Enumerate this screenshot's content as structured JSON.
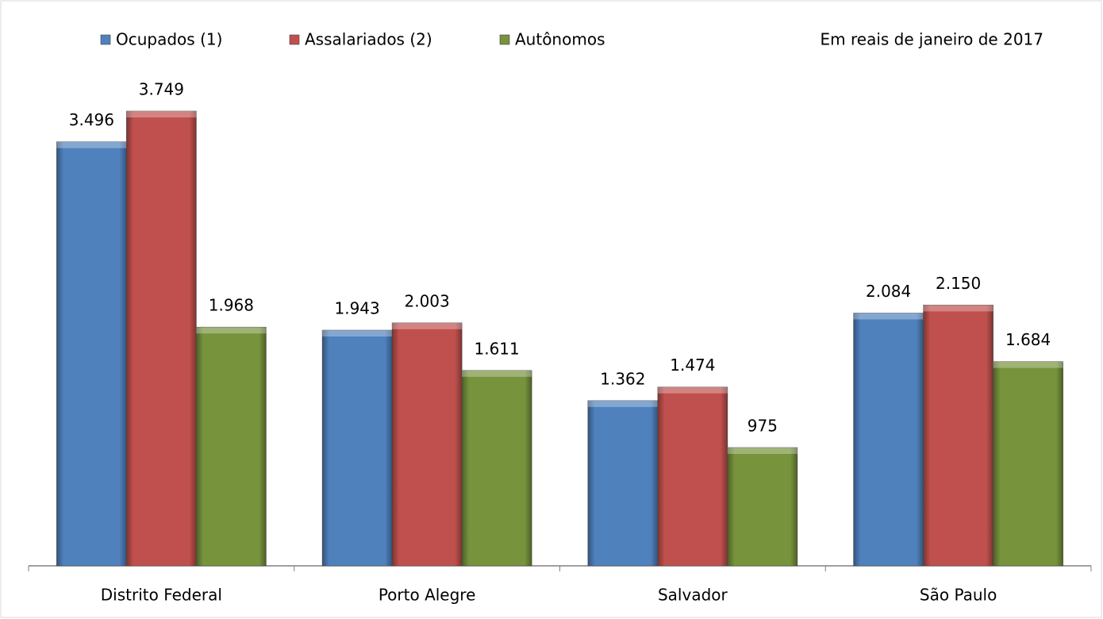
{
  "chart_data": {
    "type": "bar",
    "subtitle": "Em reais de janeiro de 2017",
    "categories": [
      "Distrito Federal",
      "Porto Alegre",
      "Salvador",
      "São Paulo"
    ],
    "series": [
      {
        "name": "Ocupados (1)",
        "color": "#4f81bd",
        "values": [
          3496,
          1943,
          1362,
          2084
        ],
        "value_labels": [
          "3.496",
          "1.943",
          "1.362",
          "2.084"
        ]
      },
      {
        "name": "Assalariados (2)",
        "color": "#c0504d",
        "values": [
          3749,
          2003,
          1474,
          2150
        ],
        "value_labels": [
          "3.749",
          "2.003",
          "1.474",
          "2.150"
        ]
      },
      {
        "name": "Autônomos",
        "color": "#77933c",
        "values": [
          1968,
          1611,
          975,
          1684
        ],
        "value_labels": [
          "1.968",
          "1.611",
          "975",
          "1.684"
        ]
      }
    ]
  }
}
